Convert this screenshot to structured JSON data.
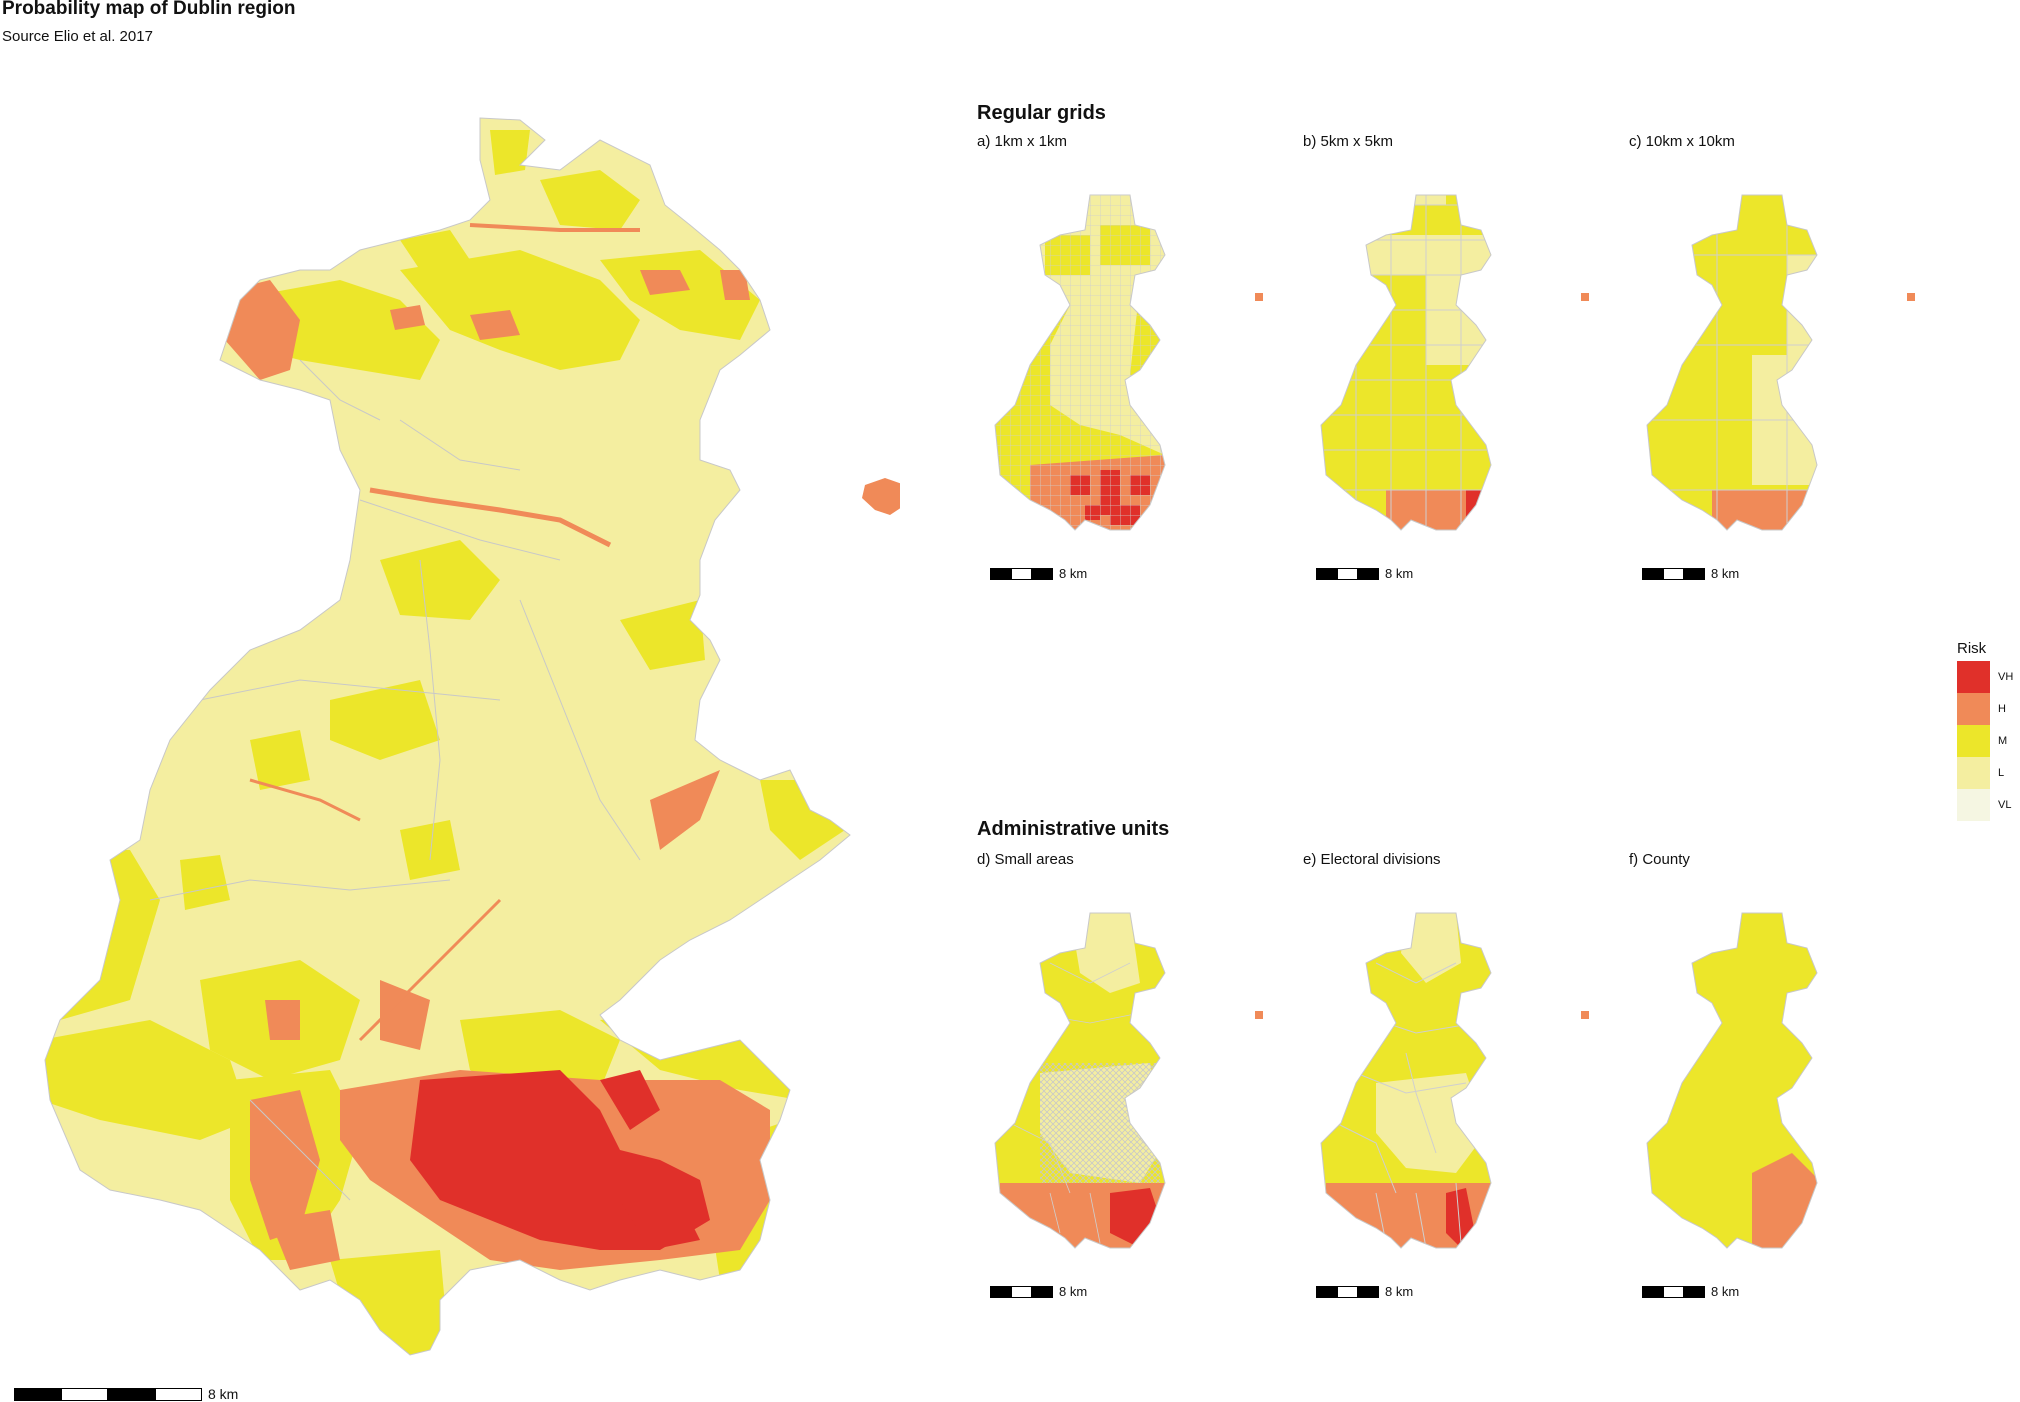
{
  "title": "Probability map of Dublin region",
  "subtitle": "Source Elio et al. 2017",
  "scale_label": "8 km",
  "colors": {
    "VH": "#e0302a",
    "H": "#f08a58",
    "M": "#ece62a",
    "L": "#f4eea0",
    "VL": "#f5f6e2",
    "boundary": "#c8c8c8"
  },
  "sections": {
    "regular": {
      "title": "Regular grids"
    },
    "admin": {
      "title": "Administrative units"
    }
  },
  "panels": [
    {
      "id": "a",
      "label": "a) 1km x 1km"
    },
    {
      "id": "b",
      "label": "b) 5km x 5km"
    },
    {
      "id": "c",
      "label": "c) 10km x 10km"
    },
    {
      "id": "d",
      "label": "d) Small areas"
    },
    {
      "id": "e",
      "label": "e) Electoral divisions"
    },
    {
      "id": "f",
      "label": "f) County"
    }
  ],
  "legend": {
    "title": "Risk",
    "items": [
      {
        "label": "VH",
        "color": "#e0302a"
      },
      {
        "label": "H",
        "color": "#f08a58"
      },
      {
        "label": "M",
        "color": "#ece62a"
      },
      {
        "label": "L",
        "color": "#f4eea0"
      },
      {
        "label": "VL",
        "color": "#f5f6e2"
      }
    ]
  }
}
